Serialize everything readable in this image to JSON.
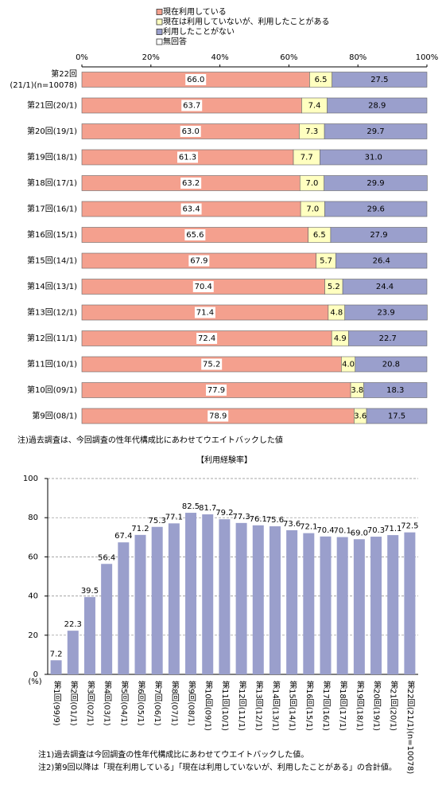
{
  "chart_data": [
    {
      "type": "stacked-barh",
      "legend": "top",
      "categories": [
        [
          "第22回",
          "(21/1)(n=10078)"
        ],
        [
          "第21回(20/1)"
        ],
        [
          "第20回(19/1)"
        ],
        [
          "第19回(18/1)"
        ],
        [
          "第18回(17/1)"
        ],
        [
          "第17回(16/1)"
        ],
        [
          "第16回(15/1)"
        ],
        [
          "第15回(14/1)"
        ],
        [
          "第14回(13/1)"
        ],
        [
          "第13回(12/1)"
        ],
        [
          "第12回(11/1)"
        ],
        [
          "第11回(10/1)"
        ],
        [
          "第10回(09/1)"
        ],
        [
          "第9回(08/1)"
        ]
      ],
      "series": [
        {
          "name": "現在利用している",
          "color": "#f4a08e",
          "values": [
            66.0,
            63.7,
            63.0,
            61.3,
            63.2,
            63.4,
            65.6,
            67.9,
            70.4,
            71.4,
            72.4,
            75.2,
            77.9,
            78.9
          ],
          "value_labels": [
            "66.0",
            "63.7",
            "63.0",
            "61.3",
            "63.2",
            "63.4",
            "65.6",
            "67.9",
            "70.4",
            "71.4",
            "72.4",
            "75.2",
            "77.9",
            "78.9"
          ]
        },
        {
          "name": "現在は利用していないが、利用したことがある",
          "color": "#ffffc0",
          "values": [
            6.5,
            7.4,
            7.3,
            7.7,
            7.0,
            7.0,
            6.5,
            5.7,
            5.2,
            4.8,
            4.9,
            4.0,
            3.8,
            3.6
          ],
          "value_labels": [
            "6.5",
            "7.4",
            "7.3",
            "7.7",
            "7.0",
            "7.0",
            "6.5",
            "5.7",
            "5.2",
            "4.8",
            "4.9",
            "4.0",
            "3.8",
            "3.6"
          ]
        },
        {
          "name": "利用したことがない",
          "color": "#9a9fcc",
          "values": [
            27.5,
            28.9,
            29.7,
            31.0,
            29.9,
            29.6,
            27.9,
            26.4,
            24.4,
            23.9,
            22.7,
            20.8,
            18.3,
            17.5
          ],
          "value_labels": [
            "27.5",
            "28.9",
            "29.7",
            "31.0",
            "29.9",
            "29.6",
            "27.9",
            "26.4",
            "24.4",
            "23.9",
            "22.7",
            "20.8",
            "18.3",
            "17.5"
          ]
        },
        {
          "name": "無回答",
          "color": "#ffffff",
          "values": [
            0,
            0,
            0,
            0,
            0,
            0,
            0,
            0,
            0,
            0,
            0,
            0,
            0,
            0
          ]
        }
      ],
      "xlim": [
        0,
        100
      ],
      "xticks": [
        {
          "value": 0,
          "label": "0%"
        },
        {
          "value": 20,
          "label": "20%"
        },
        {
          "value": 40,
          "label": "40%"
        },
        {
          "value": 60,
          "label": "60%"
        },
        {
          "value": 80,
          "label": "80%"
        },
        {
          "value": 100,
          "label": "100%"
        }
      ],
      "notes": [
        "注)過去調査は、今回調査の性年代構成比にあわせてウエイトバックした値"
      ]
    },
    {
      "type": "bar",
      "title": "【利用経験率】",
      "y_label": "(%)",
      "color": "#9a9fcc",
      "categories": [
        "第1回(99/9)",
        "第2回(01/1)",
        "第3回(02/1)",
        "第4回(03/1)",
        "第5回(04/1)",
        "第6回(05/1)",
        "第7回(06/1)",
        "第8回(07/1)",
        "第9回(08/1)",
        "第10回(09/1)",
        "第11回(10/1)",
        "第12回(11/1)",
        "第13回(12/1)",
        "第14回(13/1)",
        "第15回(14/1)",
        "第16回(15/1)",
        "第17回(16/1)",
        "第18回(17/1)",
        "第19回(18/1)",
        "第20回(19/1)",
        "第21回(20/1)",
        "第22回(21/1)(n=10078)"
      ],
      "values": [
        7.2,
        22.3,
        39.5,
        56.4,
        67.4,
        71.2,
        75.3,
        77.1,
        82.5,
        81.7,
        79.2,
        77.3,
        76.1,
        75.6,
        73.6,
        72.1,
        70.4,
        70.1,
        69.0,
        70.3,
        71.1,
        72.5
      ],
      "value_labels": [
        "7.2",
        "22.3",
        "39.5",
        "56.4",
        "67.4",
        "71.2",
        "75.3",
        "77.1",
        "82.5",
        "81.7",
        "79.2",
        "77.3",
        "76.1",
        "75.6",
        "73.6",
        "72.1",
        "70.4",
        "70.1",
        "69.0",
        "70.3",
        "71.1",
        "72.5"
      ],
      "ylim": [
        0,
        100
      ],
      "yticks": [
        0,
        20,
        40,
        60,
        80,
        100
      ],
      "grid": true,
      "notes": [
        "注1)過去調査は今回調査の性年代構成比にあわせてウエイトバックした値。",
        "注2)第9回以降は「現在利用している」「現在は利用していないが、利用したことがある」の合計値。"
      ]
    }
  ]
}
